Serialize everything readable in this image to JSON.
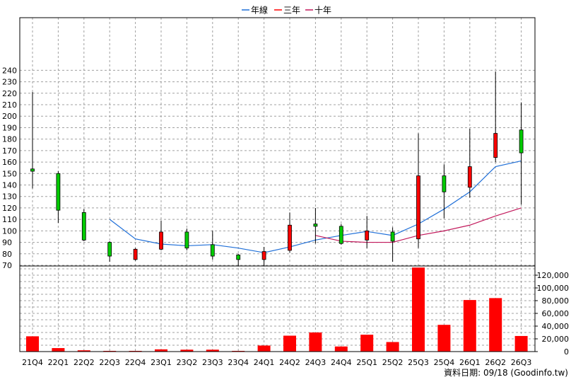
{
  "chart_data": {
    "type": "candlestick+bar",
    "title": "",
    "categories": [
      "21Q4",
      "22Q1",
      "22Q2",
      "22Q3",
      "22Q4",
      "23Q1",
      "23Q2",
      "23Q3",
      "23Q4",
      "24Q1",
      "24Q2",
      "24Q3",
      "24Q4",
      "25Q1",
      "25Q2",
      "25Q3",
      "25Q4",
      "26Q1",
      "26Q2",
      "26Q3"
    ],
    "price_axis": {
      "ylim": [
        65,
        242
      ],
      "ticks": [
        70,
        80,
        90,
        100,
        110,
        120,
        130,
        140,
        150,
        160,
        170,
        180,
        190,
        200,
        210,
        220,
        230,
        240
      ]
    },
    "volume_axis": {
      "ylim": [
        0,
        136000
      ],
      "ticks": [
        0,
        20000,
        40000,
        60000,
        80000,
        100000,
        120000
      ],
      "tick_labels": [
        "0",
        "20,000",
        "40,000",
        "60,000",
        "80,000",
        "100,000",
        "120,000"
      ]
    },
    "candles": [
      {
        "open": 152,
        "close": 154,
        "high": 221,
        "low": 137
      },
      {
        "open": 118,
        "close": 150,
        "high": 152,
        "low": 107
      },
      {
        "open": 92,
        "close": 116,
        "high": 119,
        "low": 91
      },
      {
        "open": 78,
        "close": 90,
        "high": 91,
        "low": 73
      },
      {
        "open": 84,
        "close": 75,
        "high": 85,
        "low": 74
      },
      {
        "open": 99,
        "close": 84,
        "high": 109,
        "low": 83
      },
      {
        "open": 85,
        "close": 99,
        "high": 102,
        "low": 83
      },
      {
        "open": 78,
        "close": 88,
        "high": 100,
        "low": 75
      },
      {
        "open": 75,
        "close": 79,
        "high": 80,
        "low": 69
      },
      {
        "open": 82,
        "close": 75,
        "high": 86,
        "low": 69
      },
      {
        "open": 105,
        "close": 83,
        "high": 116,
        "low": 81
      },
      {
        "open": 104,
        "close": 106,
        "high": 120,
        "low": 89
      },
      {
        "open": 89,
        "close": 104,
        "high": 106,
        "low": 88
      },
      {
        "open": 100,
        "close": 92,
        "high": 113,
        "low": 85
      },
      {
        "open": 91,
        "close": 99,
        "high": 103,
        "low": 73
      },
      {
        "open": 148,
        "close": 93,
        "high": 185,
        "low": 85
      },
      {
        "open": 134,
        "close": 148,
        "high": 158,
        "low": 111
      },
      {
        "open": 156,
        "close": 138,
        "high": 189,
        "low": 129
      },
      {
        "open": 185,
        "close": 164,
        "high": 239,
        "low": 160
      },
      {
        "open": 168,
        "close": 188,
        "high": 212,
        "low": 123
      }
    ],
    "volume": [
      24000,
      5500,
      2000,
      800,
      800,
      3500,
      3000,
      3000,
      800,
      9500,
      25000,
      30000,
      8000,
      26500,
      15000,
      132000,
      42000,
      81000,
      84000,
      24500
    ],
    "series": [
      {
        "name": "年線",
        "color": "#1f6fd8",
        "values": [
          null,
          null,
          null,
          110,
          93,
          88.5,
          87,
          88,
          85,
          81,
          86,
          92,
          96,
          99.5,
          96,
          106,
          119,
          134,
          156,
          161
        ]
      },
      {
        "name": "三年",
        "color": "#ff0000",
        "values": [
          null,
          null,
          null,
          null,
          null,
          null,
          null,
          null,
          null,
          null,
          null,
          null,
          null,
          null,
          null,
          null,
          null,
          null,
          null,
          null
        ]
      },
      {
        "name": "十年",
        "color": "#c2185b",
        "values": [
          null,
          null,
          null,
          null,
          null,
          null,
          null,
          null,
          null,
          null,
          null,
          96,
          91,
          90,
          90,
          96,
          100,
          105,
          113,
          120
        ]
      }
    ],
    "colors": {
      "up": "#00cc00",
      "down": "#ff0000",
      "volume": "#ff0000",
      "grid": "#a0a0a0"
    },
    "footer": "資料日期: 09/18  (Goodinfo.tw)",
    "legend_position": "top-center",
    "grid": true
  }
}
